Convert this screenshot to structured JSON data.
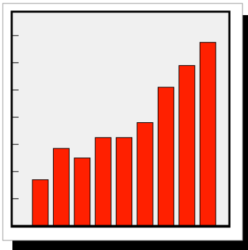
{
  "chart_data": {
    "type": "bar",
    "title": "",
    "xlabel": "",
    "ylabel": "",
    "ylim": [
      0,
      8
    ],
    "y_ticks": [
      1,
      2,
      3,
      4,
      5,
      6,
      7
    ],
    "categories": [
      "",
      "",
      "",
      "",
      "",
      "",
      "",
      "",
      ""
    ],
    "values": [
      1.7,
      2.85,
      2.5,
      3.25,
      3.25,
      3.8,
      5.1,
      5.9,
      6.75
    ],
    "grid": false,
    "legend": "none",
    "colors": {
      "bar": "#ff2000",
      "plot_background": "#f0f0f0",
      "frame_background": "#ffffff",
      "axis": "#000000",
      "shadow": "#000000"
    }
  }
}
